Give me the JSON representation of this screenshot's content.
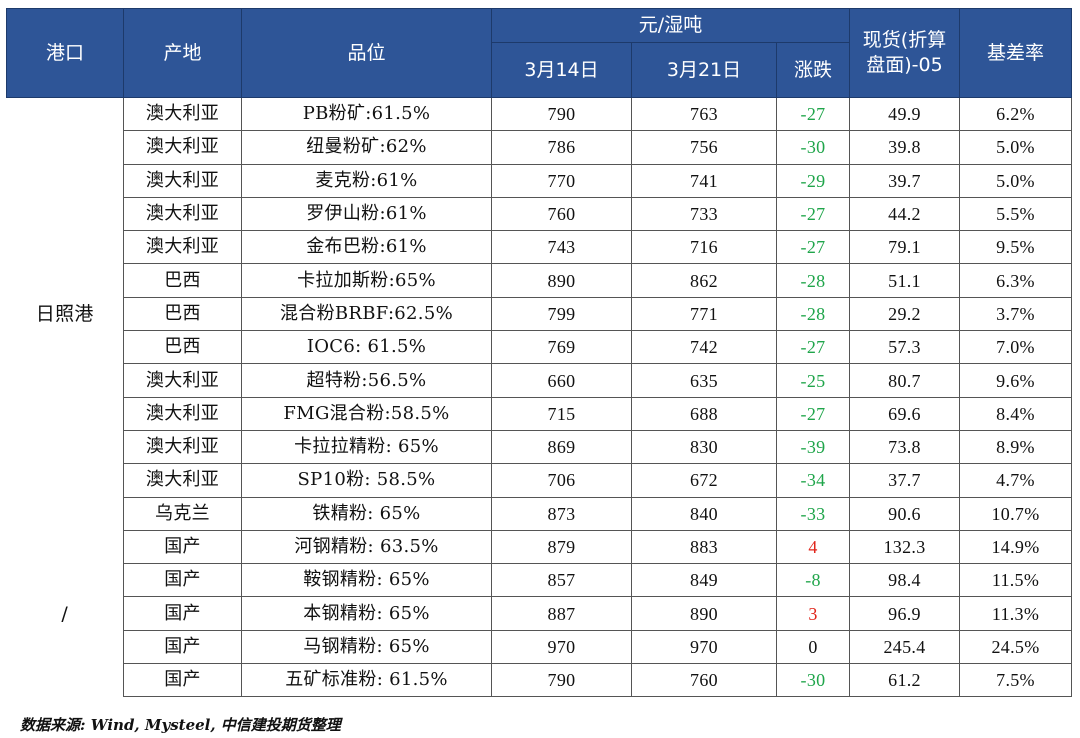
{
  "headers": {
    "port": "港口",
    "origin": "产地",
    "grade": "品位",
    "price_group": "元/湿吨",
    "date1": "3月14日",
    "date2": "3月21日",
    "change": "涨跌",
    "spot": "现货(折算盘面)-05",
    "basis": "基差率"
  },
  "groups": [
    {
      "port": "日照港",
      "rows": [
        {
          "origin": "澳大利亚",
          "grade": "PB粉矿:61.5%",
          "p1": "790",
          "p2": "763",
          "chg": "-27",
          "spot": "49.9",
          "basis": "6.2%"
        },
        {
          "origin": "澳大利亚",
          "grade": "纽曼粉矿:62%",
          "p1": "786",
          "p2": "756",
          "chg": "-30",
          "spot": "39.8",
          "basis": "5.0%"
        },
        {
          "origin": "澳大利亚",
          "grade": "麦克粉:61%",
          "p1": "770",
          "p2": "741",
          "chg": "-29",
          "spot": "39.7",
          "basis": "5.0%"
        },
        {
          "origin": "澳大利亚",
          "grade": "罗伊山粉:61%",
          "p1": "760",
          "p2": "733",
          "chg": "-27",
          "spot": "44.2",
          "basis": "5.5%"
        },
        {
          "origin": "澳大利亚",
          "grade": "金布巴粉:61%",
          "p1": "743",
          "p2": "716",
          "chg": "-27",
          "spot": "79.1",
          "basis": "9.5%"
        },
        {
          "origin": "巴西",
          "grade": "卡拉加斯粉:65%",
          "p1": "890",
          "p2": "862",
          "chg": "-28",
          "spot": "51.1",
          "basis": "6.3%"
        },
        {
          "origin": "巴西",
          "grade": "混合粉BRBF:62.5%",
          "p1": "799",
          "p2": "771",
          "chg": "-28",
          "spot": "29.2",
          "basis": "3.7%"
        },
        {
          "origin": "巴西",
          "grade": "IOC6: 61.5%",
          "p1": "769",
          "p2": "742",
          "chg": "-27",
          "spot": "57.3",
          "basis": "7.0%"
        },
        {
          "origin": "澳大利亚",
          "grade": "超特粉:56.5%",
          "p1": "660",
          "p2": "635",
          "chg": "-25",
          "spot": "80.7",
          "basis": "9.6%"
        },
        {
          "origin": "澳大利亚",
          "grade": "FMG混合粉:58.5%",
          "p1": "715",
          "p2": "688",
          "chg": "-27",
          "spot": "69.6",
          "basis": "8.4%"
        },
        {
          "origin": "澳大利亚",
          "grade": "卡拉拉精粉: 65%",
          "p1": "869",
          "p2": "830",
          "chg": "-39",
          "spot": "73.8",
          "basis": "8.9%"
        },
        {
          "origin": "澳大利亚",
          "grade": "SP10粉: 58.5%",
          "p1": "706",
          "p2": "672",
          "chg": "-34",
          "spot": "37.7",
          "basis": "4.7%"
        },
        {
          "origin": "乌克兰",
          "grade": "铁精粉: 65%",
          "p1": "873",
          "p2": "840",
          "chg": "-33",
          "spot": "90.6",
          "basis": "10.7%"
        }
      ]
    },
    {
      "port": "/",
      "rows": [
        {
          "origin": "国产",
          "grade": "河钢精粉: 63.5%",
          "p1": "879",
          "p2": "883",
          "chg": "4",
          "spot": "132.3",
          "basis": "14.9%"
        },
        {
          "origin": "国产",
          "grade": "鞍钢精粉: 65%",
          "p1": "857",
          "p2": "849",
          "chg": "-8",
          "spot": "98.4",
          "basis": "11.5%"
        },
        {
          "origin": "国产",
          "grade": "本钢精粉: 65%",
          "p1": "887",
          "p2": "890",
          "chg": "3",
          "spot": "96.9",
          "basis": "11.3%"
        },
        {
          "origin": "国产",
          "grade": "马钢精粉: 65%",
          "p1": "970",
          "p2": "970",
          "chg": "0",
          "spot": "245.4",
          "basis": "24.5%"
        },
        {
          "origin": "国产",
          "grade": "五矿标准粉: 61.5%",
          "p1": "790",
          "p2": "760",
          "chg": "-30",
          "spot": "61.2",
          "basis": "7.5%"
        }
      ]
    }
  ],
  "colors": {
    "header_bg": "#2e5597",
    "down": "#1fa54a",
    "up": "#e0251b"
  },
  "source": "数据来源: Wind, Mysteel, 中信建投期货整理"
}
